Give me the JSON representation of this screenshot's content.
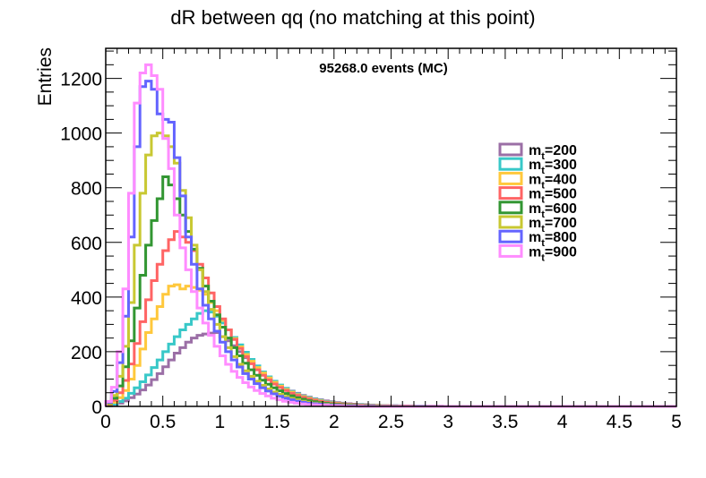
{
  "chart_data": {
    "type": "histogram-step",
    "title": "dR between qq (no matching at this point)",
    "annotation": "95268.0 events (MC)",
    "xlabel": "",
    "ylabel": "Entries",
    "xlim": [
      0,
      5
    ],
    "ylim": [
      0,
      1310
    ],
    "x_ticks": [
      0,
      0.5,
      1,
      1.5,
      2,
      2.5,
      3,
      3.5,
      4,
      4.5,
      5
    ],
    "x_tick_labels": [
      "0",
      "0.5",
      "1",
      "1.5",
      "2",
      "2.5",
      "3",
      "3.5",
      "4",
      "4.5",
      "5"
    ],
    "y_ticks": [
      0,
      200,
      400,
      600,
      800,
      1000,
      1200
    ],
    "y_tick_labels": [
      "0",
      "200",
      "400",
      "600",
      "800",
      "1000",
      "1200"
    ],
    "grid": false,
    "legend_position": "right",
    "bin_width": 0.05,
    "series": [
      {
        "name": "m_t=200",
        "legend_main": "m",
        "legend_sub": "t",
        "legend_rest": "=200",
        "color": "#9b6fa6",
        "values": [
          2,
          6,
          12,
          20,
          32,
          45,
          60,
          78,
          98,
          120,
          145,
          170,
          195,
          215,
          235,
          250,
          260,
          265,
          268,
          270,
          255,
          240,
          222,
          200,
          178,
          158,
          138,
          120,
          104,
          90,
          77,
          66,
          56,
          48,
          40,
          34,
          28,
          24,
          20,
          17,
          14,
          12,
          10,
          8,
          7,
          6,
          5,
          4,
          3,
          3,
          3,
          2,
          2,
          2,
          1,
          1,
          1,
          1,
          1,
          0,
          0,
          0,
          0,
          0,
          0,
          0,
          0,
          0,
          0,
          0,
          0,
          0,
          0,
          0,
          0,
          0,
          0,
          0,
          0,
          0,
          0,
          0,
          0,
          0,
          0,
          0,
          0,
          0,
          0,
          0,
          0,
          0,
          0,
          0,
          0,
          0,
          0,
          0,
          0,
          0
        ]
      },
      {
        "name": "m_t=300",
        "legend_main": "m",
        "legend_sub": "t",
        "legend_rest": "=300",
        "color": "#38c8c8",
        "values": [
          3,
          8,
          18,
          30,
          48,
          68,
          90,
          115,
          142,
          170,
          200,
          228,
          255,
          280,
          300,
          320,
          340,
          350,
          345,
          330,
          305,
          280,
          252,
          225,
          198,
          172,
          148,
          126,
          108,
          92,
          78,
          66,
          55,
          46,
          38,
          32,
          26,
          22,
          18,
          15,
          12,
          10,
          8,
          7,
          6,
          5,
          4,
          3,
          3,
          2,
          2,
          2,
          1,
          1,
          1,
          1,
          0,
          0,
          0,
          0,
          0,
          0,
          0,
          0,
          0,
          0,
          0,
          0,
          0,
          0,
          0,
          0,
          0,
          0,
          0,
          0,
          0,
          0,
          0,
          0,
          0,
          0,
          0,
          0,
          0,
          0,
          0,
          0,
          0,
          0,
          0,
          0,
          0,
          0,
          0,
          0,
          0,
          0,
          0,
          0
        ]
      },
      {
        "name": "m_t=400",
        "legend_main": "m",
        "legend_sub": "t",
        "legend_rest": "=400",
        "color": "#ffc83c",
        "values": [
          5,
          15,
          32,
          58,
          100,
          150,
          210,
          270,
          320,
          365,
          410,
          440,
          445,
          430,
          440,
          435,
          425,
          410,
          380,
          350,
          315,
          280,
          248,
          218,
          190,
          165,
          142,
          122,
          104,
          88,
          74,
          62,
          52,
          43,
          36,
          30,
          24,
          20,
          16,
          13,
          11,
          9,
          7,
          6,
          5,
          4,
          3,
          3,
          2,
          2,
          1,
          1,
          1,
          1,
          0,
          0,
          0,
          0,
          0,
          0,
          0,
          0,
          0,
          0,
          0,
          0,
          0,
          0,
          0,
          0,
          0,
          0,
          0,
          0,
          0,
          0,
          0,
          0,
          0,
          0,
          0,
          0,
          0,
          0,
          0,
          0,
          0,
          0,
          0,
          0,
          0,
          0,
          0,
          0,
          0,
          0,
          0,
          0,
          0,
          0
        ]
      },
      {
        "name": "m_t=500",
        "legend_main": "m",
        "legend_sub": "t",
        "legend_rest": "=500",
        "color": "#ff6464",
        "values": [
          8,
          22,
          50,
          95,
          155,
          230,
          310,
          390,
          460,
          520,
          570,
          610,
          640,
          620,
          600,
          570,
          520,
          470,
          415,
          365,
          320,
          280,
          245,
          212,
          182,
          156,
          134,
          114,
          97,
          82,
          69,
          58,
          48,
          40,
          33,
          27,
          22,
          18,
          15,
          12,
          10,
          8,
          7,
          6,
          5,
          4,
          3,
          2,
          2,
          2,
          1,
          1,
          1,
          0,
          0,
          0,
          0,
          0,
          0,
          0,
          0,
          0,
          0,
          0,
          0,
          0,
          0,
          0,
          0,
          0,
          0,
          0,
          0,
          0,
          0,
          0,
          0,
          0,
          0,
          0,
          0,
          0,
          0,
          0,
          0,
          0,
          0,
          0,
          0,
          0,
          0,
          0,
          0,
          0,
          0,
          0,
          0,
          0,
          0,
          0
        ]
      },
      {
        "name": "m_t=600",
        "legend_main": "m",
        "legend_sub": "t",
        "legend_rest": "=600",
        "color": "#329632",
        "values": [
          10,
          30,
          75,
          145,
          240,
          360,
          480,
          590,
          680,
          760,
          840,
          810,
          760,
          700,
          640,
          575,
          505,
          440,
          385,
          335,
          290,
          250,
          215,
          185,
          158,
          134,
          114,
          96,
          81,
          68,
          57,
          47,
          39,
          32,
          26,
          21,
          17,
          14,
          11,
          9,
          7,
          6,
          5,
          4,
          3,
          3,
          2,
          2,
          1,
          1,
          1,
          0,
          0,
          0,
          0,
          0,
          0,
          0,
          0,
          0,
          0,
          0,
          0,
          0,
          0,
          0,
          0,
          0,
          0,
          0,
          0,
          0,
          0,
          0,
          0,
          0,
          0,
          0,
          0,
          0,
          0,
          0,
          0,
          0,
          0,
          0,
          0,
          0,
          0,
          0,
          0,
          0,
          0,
          0,
          0,
          0,
          0,
          0,
          0,
          0
        ]
      },
      {
        "name": "m_t=700",
        "legend_main": "m",
        "legend_sub": "t",
        "legend_rest": "=700",
        "color": "#c8c832",
        "values": [
          12,
          40,
          110,
          220,
          380,
          590,
          780,
          920,
          990,
          1000,
          990,
          950,
          890,
          790,
          690,
          590,
          500,
          420,
          355,
          300,
          255,
          215,
          182,
          154,
          130,
          110,
          92,
          77,
          64,
          53,
          44,
          36,
          29,
          24,
          19,
          15,
          12,
          10,
          8,
          6,
          5,
          4,
          3,
          2,
          2,
          1,
          1,
          1,
          0,
          0,
          0,
          0,
          0,
          0,
          0,
          0,
          0,
          0,
          0,
          0,
          0,
          0,
          0,
          0,
          0,
          0,
          0,
          0,
          0,
          0,
          0,
          0,
          0,
          0,
          0,
          0,
          0,
          0,
          0,
          0,
          0,
          0,
          0,
          0,
          0,
          0,
          0,
          0,
          0,
          0,
          0,
          0,
          0,
          0,
          0,
          0,
          0,
          0,
          0,
          0
        ]
      },
      {
        "name": "m_t=800",
        "legend_main": "m",
        "legend_sub": "t",
        "legend_rest": "=800",
        "color": "#6464ff",
        "values": [
          15,
          55,
          160,
          330,
          620,
          950,
          1170,
          1190,
          1160,
          1070,
          1050,
          1040,
          910,
          770,
          620,
          520,
          430,
          370,
          320,
          275,
          235,
          200,
          170,
          144,
          120,
          100,
          83,
          68,
          56,
          46,
          37,
          30,
          24,
          19,
          15,
          12,
          10,
          8,
          6,
          5,
          4,
          3,
          2,
          2,
          1,
          1,
          1,
          0,
          0,
          0,
          0,
          0,
          0,
          0,
          0,
          0,
          0,
          0,
          0,
          0,
          0,
          0,
          0,
          0,
          0,
          0,
          0,
          0,
          0,
          0,
          0,
          0,
          0,
          0,
          0,
          0,
          0,
          0,
          0,
          0,
          0,
          0,
          0,
          0,
          0,
          0,
          0,
          0,
          0,
          0,
          0,
          0,
          0,
          0,
          0,
          0,
          0,
          0,
          0,
          0
        ]
      },
      {
        "name": "m_t=900",
        "legend_main": "m",
        "legend_sub": "t",
        "legend_rest": "=900",
        "color": "#ff8cff",
        "values": [
          18,
          70,
          200,
          430,
          780,
          1110,
          1220,
          1250,
          1210,
          1160,
          980,
          870,
          700,
          580,
          500,
          420,
          360,
          305,
          260,
          220,
          185,
          154,
          128,
          106,
          87,
          71,
          58,
          47,
          38,
          30,
          24,
          19,
          15,
          12,
          9,
          7,
          6,
          5,
          4,
          3,
          2,
          2,
          1,
          1,
          1,
          0,
          0,
          0,
          0,
          0,
          0,
          0,
          0,
          0,
          0,
          0,
          0,
          0,
          0,
          0,
          0,
          0,
          0,
          0,
          0,
          0,
          0,
          0,
          0,
          0,
          0,
          0,
          0,
          0,
          0,
          0,
          0,
          0,
          0,
          0,
          0,
          0,
          0,
          0,
          0,
          0,
          0,
          0,
          0,
          0,
          0,
          0,
          0,
          0,
          0,
          0,
          0,
          0,
          0,
          0
        ]
      }
    ]
  }
}
